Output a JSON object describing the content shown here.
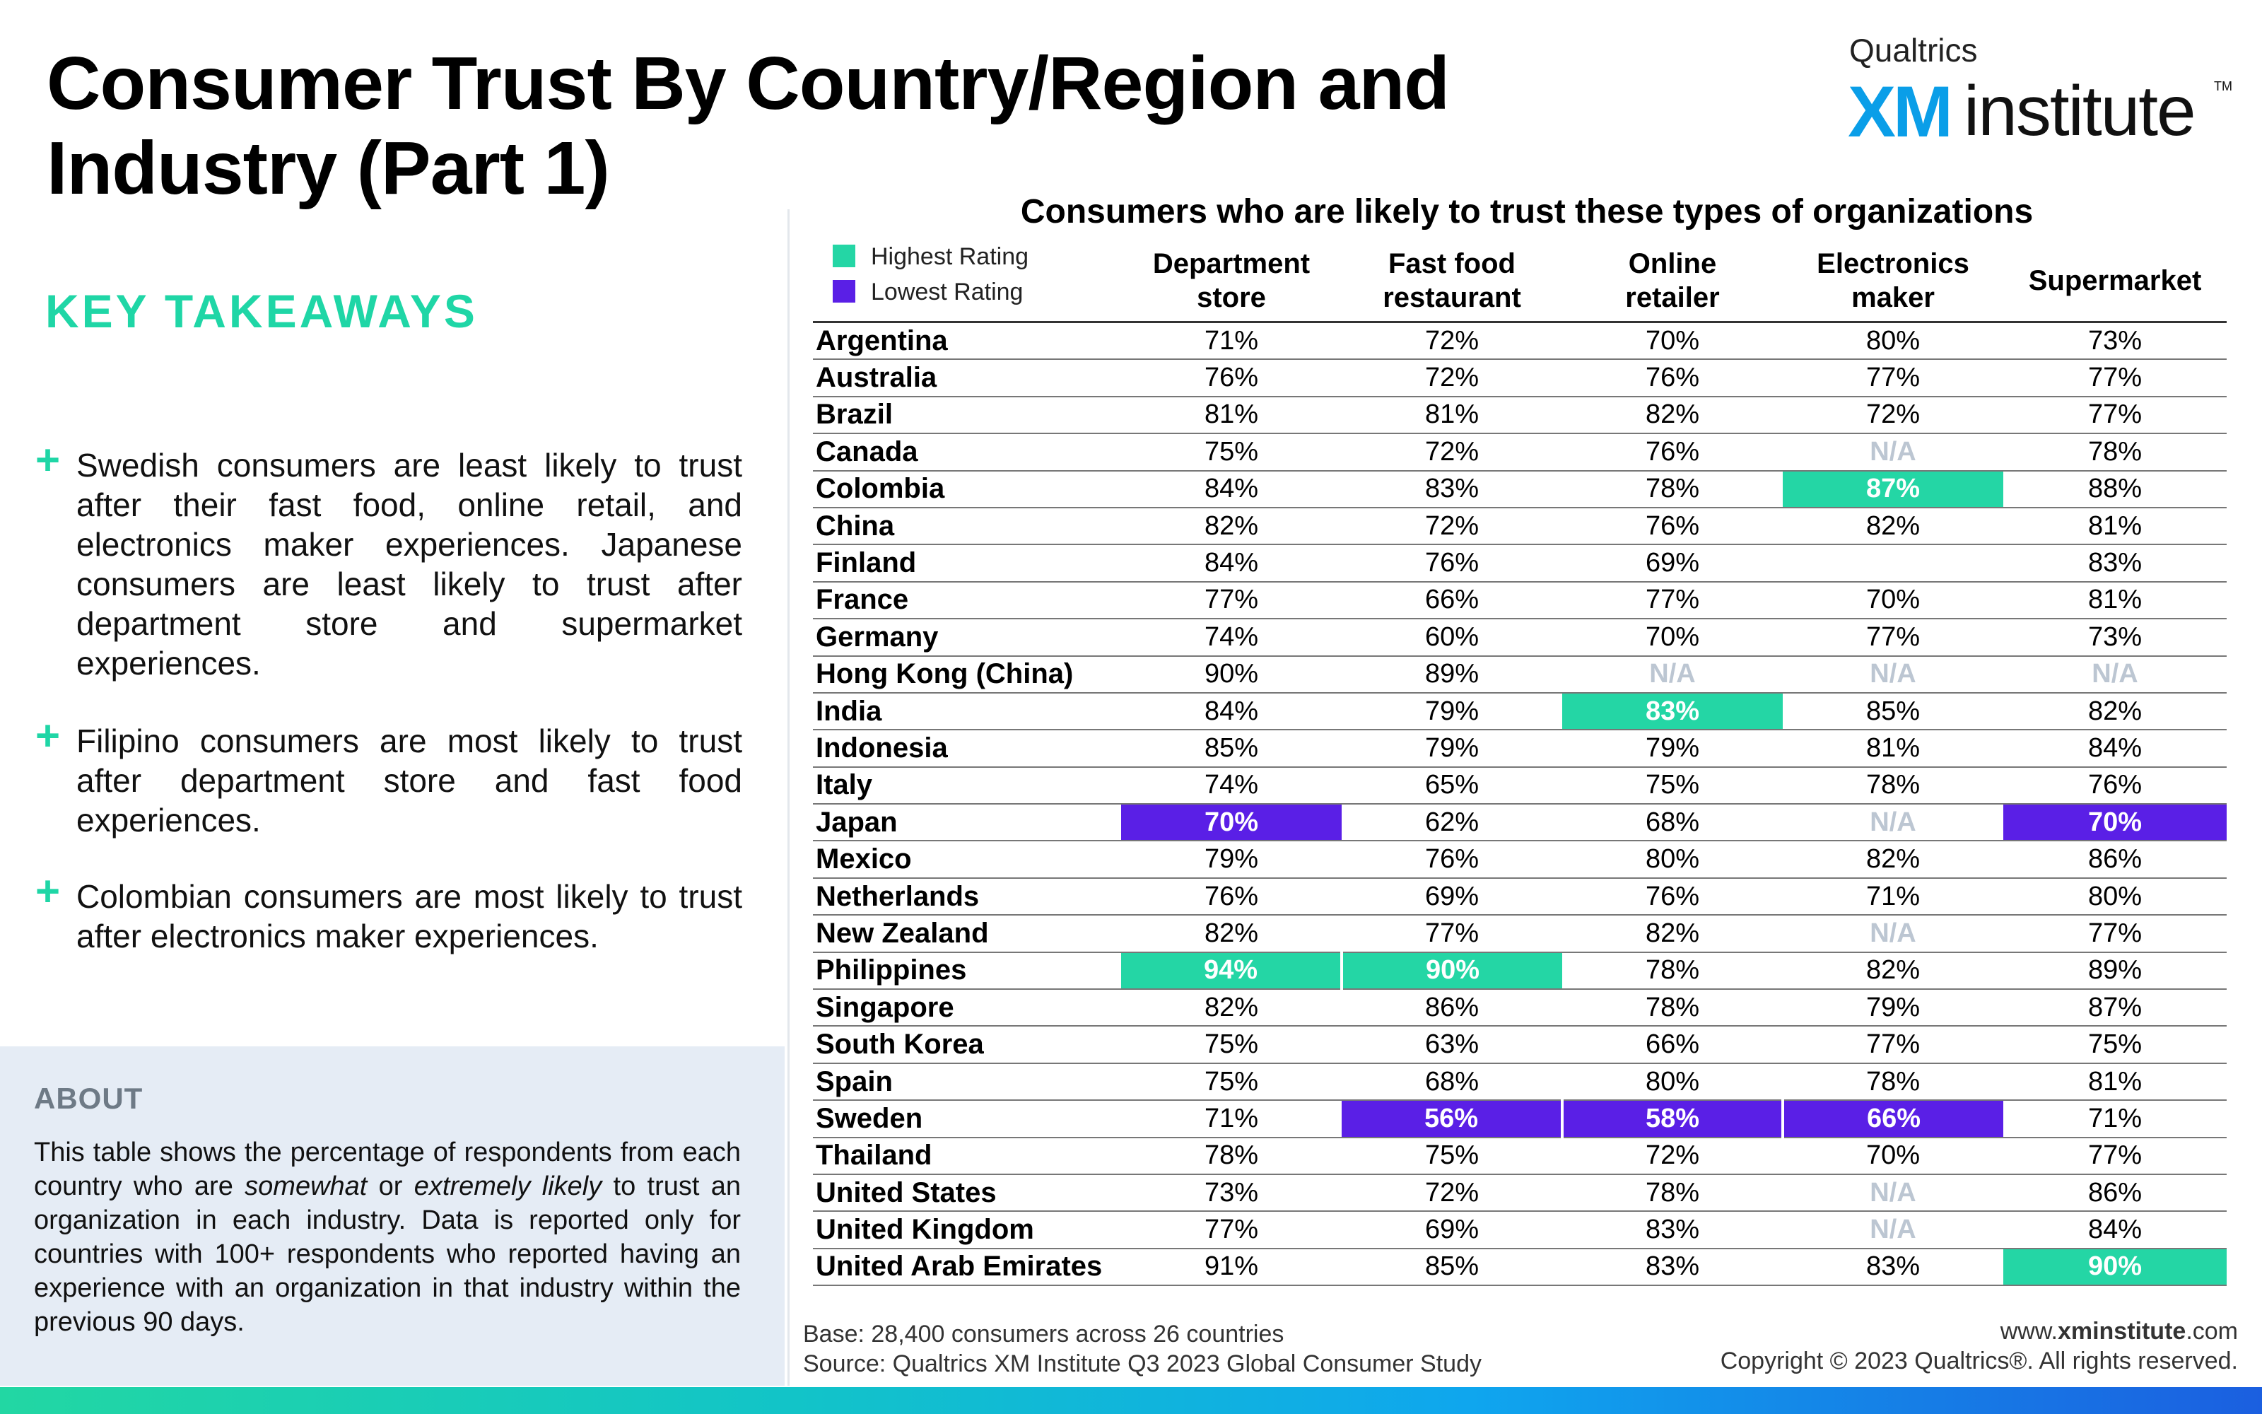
{
  "title_line1": "Consumer Trust By Country/Region and",
  "title_line2": "Industry (Part 1)",
  "logo": {
    "brand": "Qualtrics",
    "xm": "XM",
    "inst": "institute",
    "tm": "TM"
  },
  "key_takeaways": {
    "heading": "KEY TAKEAWAYS",
    "items": [
      "Swedish consumers are least likely to trust after their fast food, online retail, and electronics maker experiences. Japanese consumers are least likely to trust after department store and supermarket experiences.",
      "Filipino consumers are most likely to trust after department store and fast food experiences.",
      "Colombian consumers are most likely to trust after electronics maker experiences."
    ]
  },
  "about": {
    "heading": "ABOUT",
    "text_a": "This table shows the percentage of respondents from each country who are ",
    "em1": "somewhat",
    "text_b": " or ",
    "em2": "extremely likely",
    "text_c": " to trust an organization in each industry. Data is reported only for countries with 100+ respondents who reported having an experience with an organization in that industry within the previous 90 days."
  },
  "table": {
    "title": "Consumers who are likely to trust these types of organizations",
    "legend": {
      "high": "Highest Rating",
      "low": "Lowest Rating",
      "high_color": "#24d6a5",
      "low_color": "#5a1fe6"
    },
    "columns": [
      {
        "line1": "Department",
        "line2": "store"
      },
      {
        "line1": "Fast food",
        "line2": "restaurant"
      },
      {
        "line1": "Online",
        "line2": "retailer"
      },
      {
        "line1": "Electronics",
        "line2": "maker"
      },
      {
        "line1": "Supermarket",
        "line2": ""
      }
    ],
    "rows": [
      {
        "country": "Argentina",
        "values": [
          "71%",
          "72%",
          "70%",
          "80%",
          "73%"
        ]
      },
      {
        "country": "Australia",
        "values": [
          "76%",
          "72%",
          "76%",
          "77%",
          "77%"
        ]
      },
      {
        "country": "Brazil",
        "values": [
          "81%",
          "81%",
          "82%",
          "72%",
          "77%"
        ]
      },
      {
        "country": "Canada",
        "values": [
          "75%",
          "72%",
          "76%",
          "N/A",
          "78%"
        ]
      },
      {
        "country": "Colombia",
        "values": [
          "84%",
          "83%",
          "78%",
          "87%",
          "88%"
        ]
      },
      {
        "country": "China",
        "values": [
          "82%",
          "72%",
          "76%",
          "82%",
          "81%"
        ]
      },
      {
        "country": "Finland",
        "values": [
          "84%",
          "76%",
          "69%",
          "",
          "83%"
        ]
      },
      {
        "country": "France",
        "values": [
          "77%",
          "66%",
          "77%",
          "70%",
          "81%"
        ]
      },
      {
        "country": "Germany",
        "values": [
          "74%",
          "60%",
          "70%",
          "77%",
          "73%"
        ]
      },
      {
        "country": "Hong Kong (China)",
        "values": [
          "90%",
          "89%",
          "N/A",
          "N/A",
          "N/A"
        ]
      },
      {
        "country": "India",
        "values": [
          "84%",
          "79%",
          "83%",
          "85%",
          "82%"
        ]
      },
      {
        "country": "Indonesia",
        "values": [
          "85%",
          "79%",
          "79%",
          "81%",
          "84%"
        ]
      },
      {
        "country": "Italy",
        "values": [
          "74%",
          "65%",
          "75%",
          "78%",
          "76%"
        ]
      },
      {
        "country": "Japan",
        "values": [
          "70%",
          "62%",
          "68%",
          "N/A",
          "70%"
        ]
      },
      {
        "country": "Mexico",
        "values": [
          "79%",
          "76%",
          "80%",
          "82%",
          "86%"
        ]
      },
      {
        "country": "Netherlands",
        "values": [
          "76%",
          "69%",
          "76%",
          "71%",
          "80%"
        ]
      },
      {
        "country": "New Zealand",
        "values": [
          "82%",
          "77%",
          "82%",
          "N/A",
          "77%"
        ]
      },
      {
        "country": "Philippines",
        "values": [
          "94%",
          "90%",
          "78%",
          "82%",
          "89%"
        ]
      },
      {
        "country": "Singapore",
        "values": [
          "82%",
          "86%",
          "78%",
          "79%",
          "87%"
        ]
      },
      {
        "country": "South Korea",
        "values": [
          "75%",
          "63%",
          "66%",
          "77%",
          "75%"
        ]
      },
      {
        "country": "Spain",
        "values": [
          "75%",
          "68%",
          "80%",
          "78%",
          "81%"
        ]
      },
      {
        "country": "Sweden",
        "values": [
          "71%",
          "56%",
          "58%",
          "66%",
          "71%"
        ]
      },
      {
        "country": "Thailand",
        "values": [
          "78%",
          "75%",
          "72%",
          "70%",
          "77%"
        ]
      },
      {
        "country": "United States",
        "values": [
          "73%",
          "72%",
          "78%",
          "N/A",
          "86%"
        ]
      },
      {
        "country": "United Kingdom",
        "values": [
          "77%",
          "69%",
          "83%",
          "N/A",
          "84%"
        ]
      },
      {
        "country": "United Arab Emirates",
        "values": [
          "91%",
          "85%",
          "83%",
          "83%",
          "90%"
        ]
      }
    ],
    "highlights": {
      "high": [
        [
          4,
          3
        ],
        [
          10,
          2
        ],
        [
          17,
          0
        ],
        [
          17,
          1
        ],
        [
          25,
          4
        ]
      ],
      "low": [
        [
          13,
          0
        ],
        [
          13,
          4
        ],
        [
          21,
          1
        ],
        [
          21,
          2
        ],
        [
          21,
          3
        ]
      ]
    }
  },
  "footer": {
    "base": "Base: 28,400 consumers across 26 countries",
    "source": "Source: Qualtrics XM Institute Q3 2023 Global Consumer Study",
    "site_prefix": "www.",
    "site_bold": "xminstitute",
    "site_suffix": ".com",
    "copyright": "Copyright © 2023 Qualtrics®. All rights reserved."
  }
}
